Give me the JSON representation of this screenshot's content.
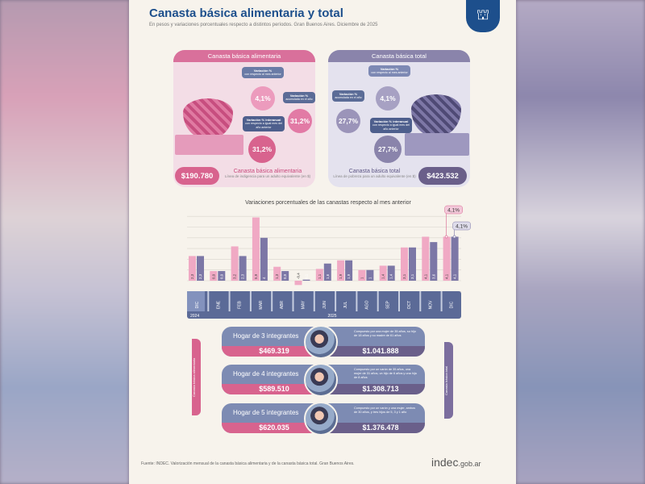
{
  "header": {
    "title": "Canasta básica alimentaria y total",
    "subtitle": "En pesos y variaciones porcentuales respecto a distintos períodos. Gran Buenos Aires. Diciembre de 2025"
  },
  "cba": {
    "title": "Canasta básica alimentaria",
    "monthly": {
      "label": "Variación %",
      "desc": "con respecto al mes anterior",
      "value": "4,1%"
    },
    "cumulative": {
      "label": "Variación %",
      "desc": "acumulada en el año",
      "value": "31,2%"
    },
    "yearly": {
      "label": "Variación % interanual",
      "desc": "con respecto a igual mes del año anterior",
      "value": "31,2%"
    },
    "price": "$190.780",
    "footer_title": "Canasta básica alimentaria",
    "footer_desc": "Línea de indigencia para un adulto equivalente (en $)"
  },
  "cbt": {
    "title": "Canasta básica total",
    "monthly": {
      "label": "Variación %",
      "desc": "con respecto al mes anterior",
      "value": "4,1%"
    },
    "cumulative": {
      "label": "Variación %",
      "desc": "acumulada en el año",
      "value": "27,7%"
    },
    "yearly": {
      "label": "Variación % interanual",
      "desc": "con respecto a igual mes del año anterior",
      "value": "27,7%"
    },
    "price": "$423.532",
    "footer_title": "Canasta básica total",
    "footer_desc": "Línea de pobreza para un adulto equivalente (en $)"
  },
  "chart_data": {
    "type": "bar",
    "title": "Variaciones porcentuales de las canastas respecto al mes anterior",
    "categories": [
      "DIC",
      "ENE",
      "FEB",
      "MAR",
      "ABR",
      "MAY",
      "JUN",
      "JUL",
      "AGO",
      "SEP",
      "OCT",
      "NOV",
      "DIC"
    ],
    "years": [
      "2024",
      "2025"
    ],
    "series": [
      {
        "name": "Canasta básica alimentaria",
        "color": "#f0a9c4",
        "values": [
          2.3,
          0.9,
          3.2,
          5.9,
          1.3,
          -0.4,
          1.1,
          1.9,
          1.0,
          1.4,
          3.1,
          4.1,
          4.1
        ]
      },
      {
        "name": "Canasta básica total",
        "color": "#7c77a6",
        "values": [
          2.3,
          0.9,
          2.3,
          4.0,
          0.9,
          0.1,
          1.6,
          1.9,
          1.0,
          1.4,
          3.1,
          3.6,
          4.1
        ]
      }
    ],
    "ylim": [
      -1,
      6
    ],
    "callouts": [
      "4,1%",
      "4,1%"
    ]
  },
  "households": {
    "left_tab": "Canasta básica alimentaria",
    "right_tab": "Canasta básica total",
    "rows": [
      {
        "name": "Hogar de 3 integrantes",
        "cba": "$469.319",
        "cbt": "$1.041.888",
        "desc": "Compuesto por una mujer de 35 años, su hijo de 18 años y su madre de 61 años"
      },
      {
        "name": "Hogar de 4 integrantes",
        "cba": "$589.510",
        "cbt": "$1.308.713",
        "desc": "Compuesto por un varón de 35 años, una mujer de 31 años, un hijo de 6 años y una hija de 8 años"
      },
      {
        "name": "Hogar de 5 integrantes",
        "cba": "$620.035",
        "cbt": "$1.376.478",
        "desc": "Compuesto por un varón y una mujer, ambos de 30 años, y tres hijos de 5, 3 y 1 año"
      }
    ]
  },
  "footer": {
    "source": "Fuente: INDEC. Valorización mensual de la canasta básica alimentaria y de la canasta básica total. Gran Buenos Aires.",
    "brand_main": "indec",
    "brand_suffix": ".gob.ar"
  }
}
